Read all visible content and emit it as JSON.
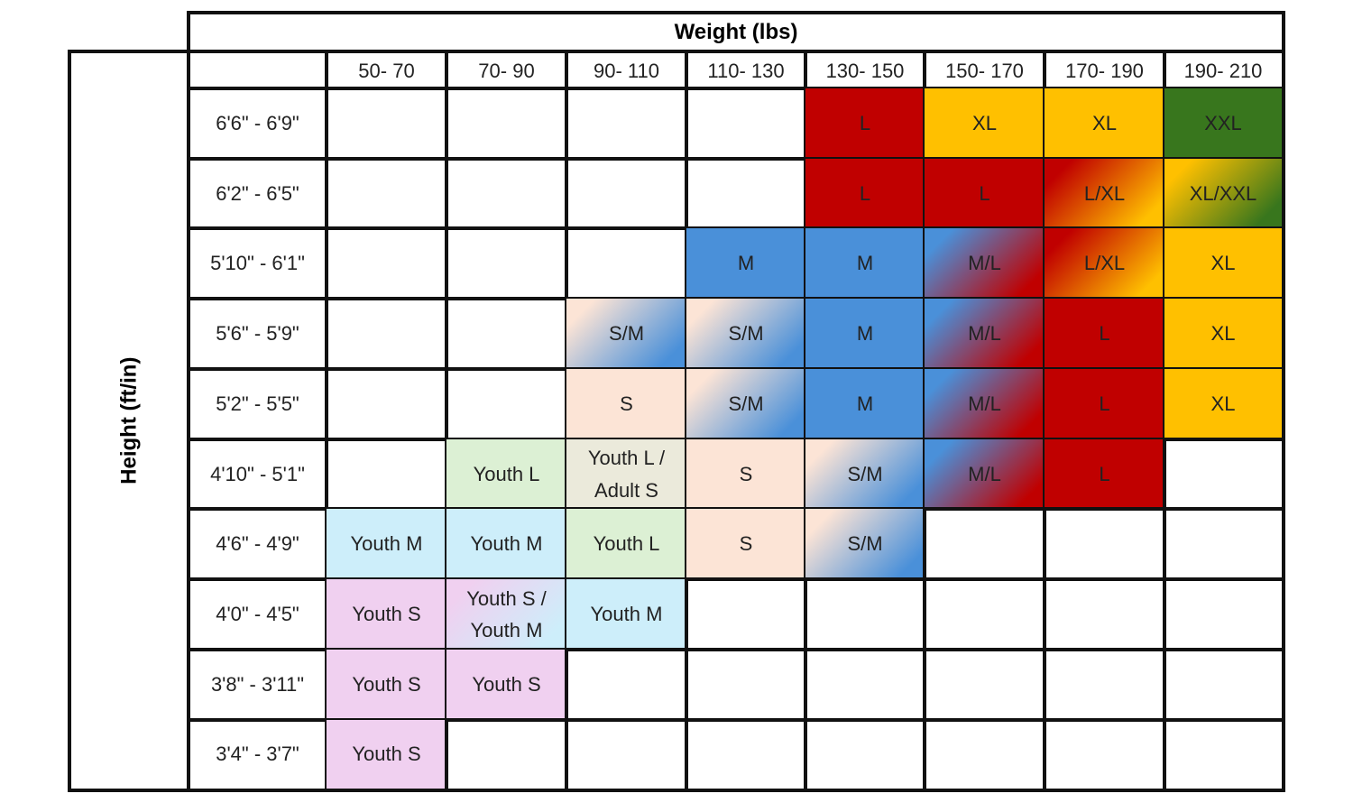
{
  "header": {
    "title": "Weight (lbs)"
  },
  "side_label": "Height (ft/in)",
  "columns": [
    "50- 70",
    "70- 90",
    "90- 110",
    "110- 130",
    "130- 150",
    "150- 170",
    "170- 190",
    "190- 210"
  ],
  "rows": [
    {
      "label": "6'6\" - 6'9\"",
      "cells": [
        null,
        null,
        null,
        null,
        "L",
        "XL",
        "XL",
        "XXL"
      ],
      "colors": [
        null,
        null,
        null,
        null,
        "#c00000",
        "#ffc000",
        "#ffc000",
        "#38761d"
      ]
    },
    {
      "label": "6'2\" - 6'5\"",
      "cells": [
        null,
        null,
        null,
        null,
        "L",
        "L",
        "L/XL",
        "XL/XXL"
      ],
      "colors": [
        null,
        null,
        null,
        null,
        "#c00000",
        "#c00000",
        [
          "#c00000",
          "#ffc000"
        ],
        [
          "#ffc000",
          "#38761d"
        ]
      ]
    },
    {
      "label": "5'10\" - 6'1\"",
      "cells": [
        null,
        null,
        null,
        "M",
        "M",
        "M/L",
        "L/XL",
        "XL"
      ],
      "colors": [
        null,
        null,
        null,
        "#4a90d9",
        "#4a90d9",
        [
          "#4a90d9",
          "#c00000"
        ],
        [
          "#c00000",
          "#ffc000"
        ],
        "#ffc000"
      ]
    },
    {
      "label": "5'6\" - 5'9\"",
      "cells": [
        null,
        null,
        "S/M",
        "S/M",
        "M",
        "M/L",
        "L",
        "XL"
      ],
      "colors": [
        null,
        null,
        [
          "#fce4d6",
          "#4a90d9"
        ],
        [
          "#fce4d6",
          "#4a90d9"
        ],
        "#4a90d9",
        [
          "#4a90d9",
          "#c00000"
        ],
        "#c00000",
        "#ffc000"
      ]
    },
    {
      "label": "5'2\" - 5'5\"",
      "cells": [
        null,
        null,
        "S",
        "S/M",
        "M",
        "M/L",
        "L",
        "XL"
      ],
      "colors": [
        null,
        null,
        "#fce4d6",
        [
          "#fce4d6",
          "#4a90d9"
        ],
        "#4a90d9",
        [
          "#4a90d9",
          "#c00000"
        ],
        "#c00000",
        "#ffc000"
      ]
    },
    {
      "label": "4'10\" - 5'1\"",
      "cells": [
        null,
        "Youth L",
        "Youth L / Adult S",
        "S",
        "S/M",
        "M/L",
        "L",
        null
      ],
      "colors": [
        null,
        "#dcf0d4",
        "#ebeadb",
        "#fce4d6",
        [
          "#fce4d6",
          "#4a90d9"
        ],
        [
          "#4a90d9",
          "#c00000"
        ],
        "#c00000",
        null
      ]
    },
    {
      "label": "4'6\" - 4'9\"",
      "cells": [
        "Youth M",
        "Youth M",
        "Youth L",
        "S",
        "S/M",
        null,
        null,
        null
      ],
      "colors": [
        "#cdeefa",
        "#cdeefa",
        "#dcf0d4",
        "#fce4d6",
        [
          "#fce4d6",
          "#4a90d9"
        ],
        null,
        null,
        null
      ]
    },
    {
      "label": "4'0\" - 4'5\"",
      "cells": [
        "Youth S",
        "Youth S / Youth M",
        "Youth M",
        null,
        null,
        null,
        null,
        null
      ],
      "colors": [
        "#f0d0f0",
        [
          "#f0d0f0",
          "#cdeefa"
        ],
        "#cdeefa",
        null,
        null,
        null,
        null,
        null
      ]
    },
    {
      "label": "3'8\" - 3'11\"",
      "cells": [
        "Youth S",
        "Youth S",
        null,
        null,
        null,
        null,
        null,
        null
      ],
      "colors": [
        "#f0d0f0",
        "#f0d0f0",
        null,
        null,
        null,
        null,
        null,
        null
      ]
    },
    {
      "label": "3'4\" - 3'7\"",
      "cells": [
        "Youth S",
        null,
        null,
        null,
        null,
        null,
        null,
        null
      ],
      "colors": [
        "#f0d0f0",
        null,
        null,
        null,
        null,
        null,
        null,
        null
      ]
    }
  ]
}
